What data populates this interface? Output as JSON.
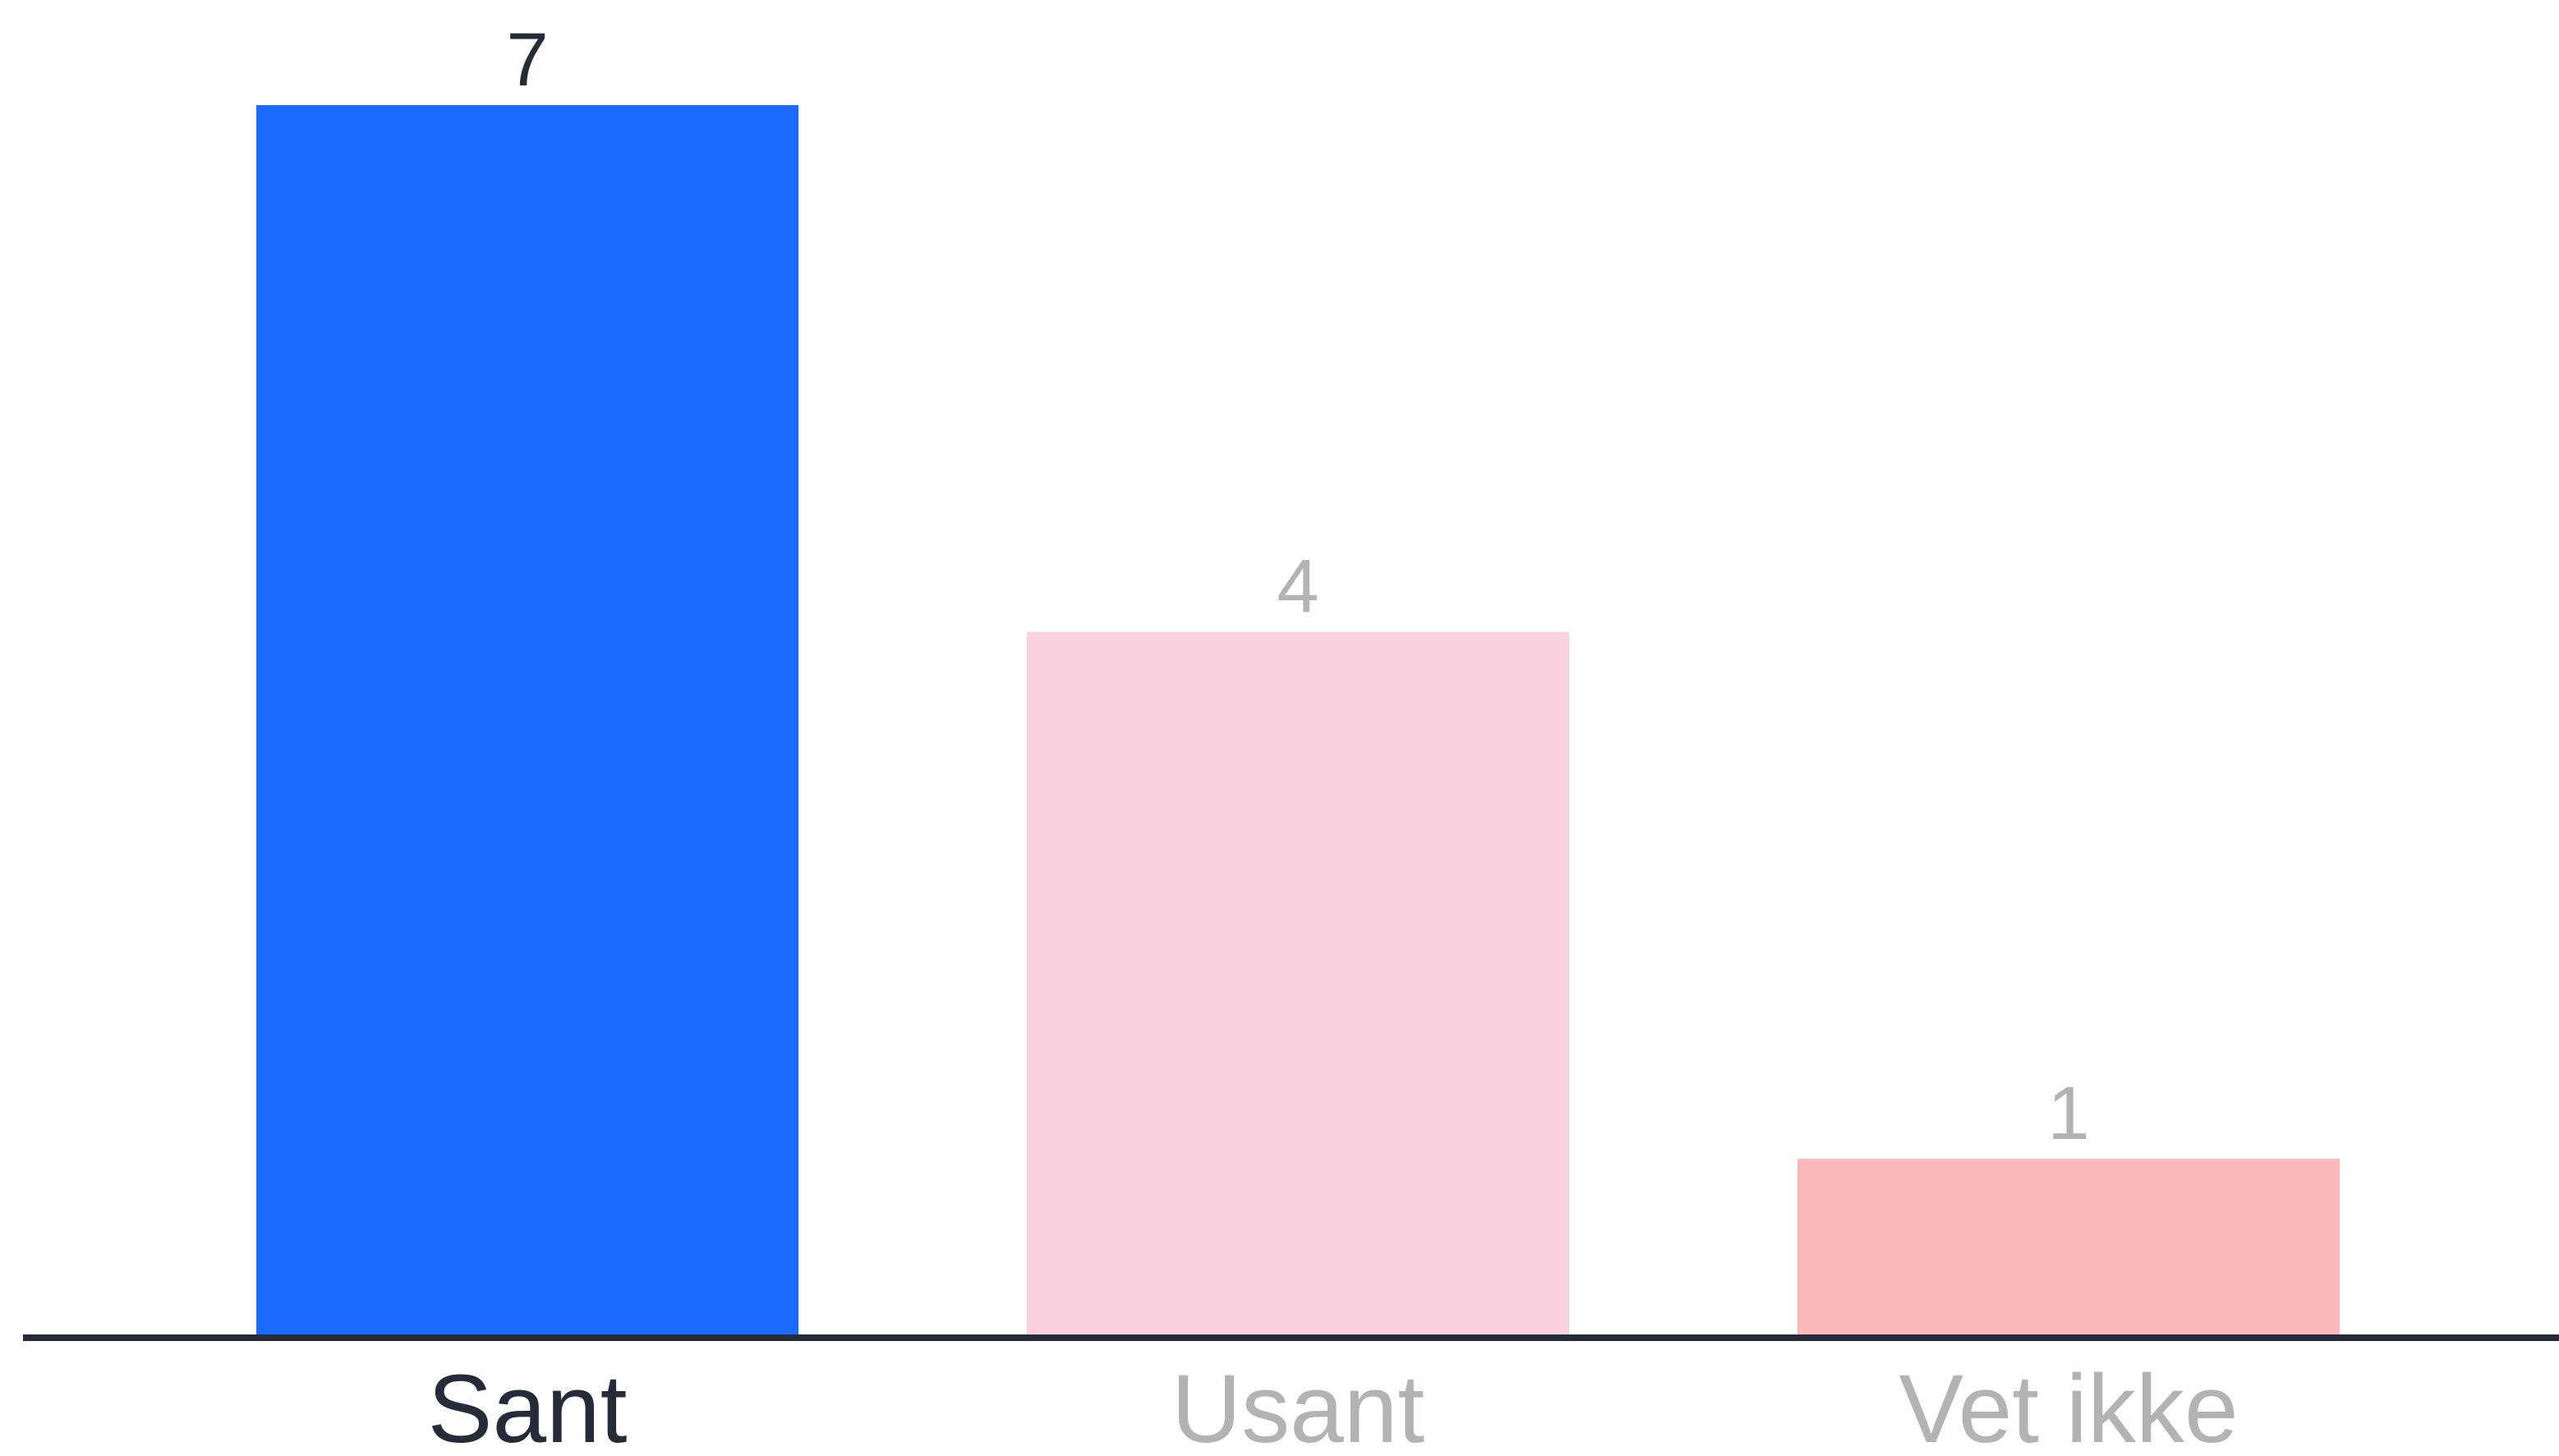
{
  "chart_data": {
    "type": "bar",
    "categories": [
      "Sant",
      "Usant",
      "Vet ikke"
    ],
    "values": [
      7,
      4,
      1
    ],
    "bar_colors": [
      "#1a69ff",
      "#fbd0df",
      "#fdb9b9"
    ],
    "category_label_colors": [
      "#262b3a",
      "#b3b3b3",
      "#b3b3b3"
    ],
    "value_label_colors": [
      "#262b3a",
      "#b3b3b3",
      "#b3b3b3"
    ],
    "axis_color": "#262b3a",
    "ylim": [
      0,
      7
    ],
    "grid": false,
    "legend": "none",
    "title": "",
    "xlabel": "",
    "ylabel": ""
  }
}
